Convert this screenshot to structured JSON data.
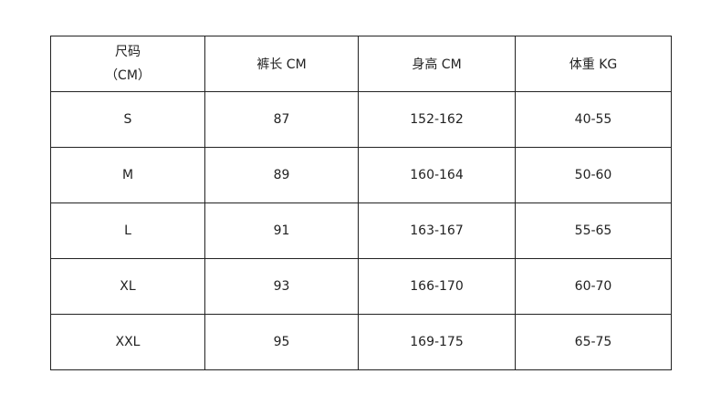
{
  "table": {
    "headers": [
      {
        "line1": "尺码",
        "line2": "（CM）"
      },
      {
        "label": "裤长 CM"
      },
      {
        "label": "身高 CM"
      },
      {
        "label": "体重 KG"
      }
    ],
    "rows": [
      [
        "S",
        "87",
        "152-162",
        "40-55"
      ],
      [
        "M",
        "89",
        "160-164",
        "50-60"
      ],
      [
        "L",
        "91",
        "163-167",
        "55-65"
      ],
      [
        "XL",
        "93",
        "166-170",
        "60-70"
      ],
      [
        "XXL",
        "95",
        "169-175",
        "65-75"
      ]
    ]
  }
}
